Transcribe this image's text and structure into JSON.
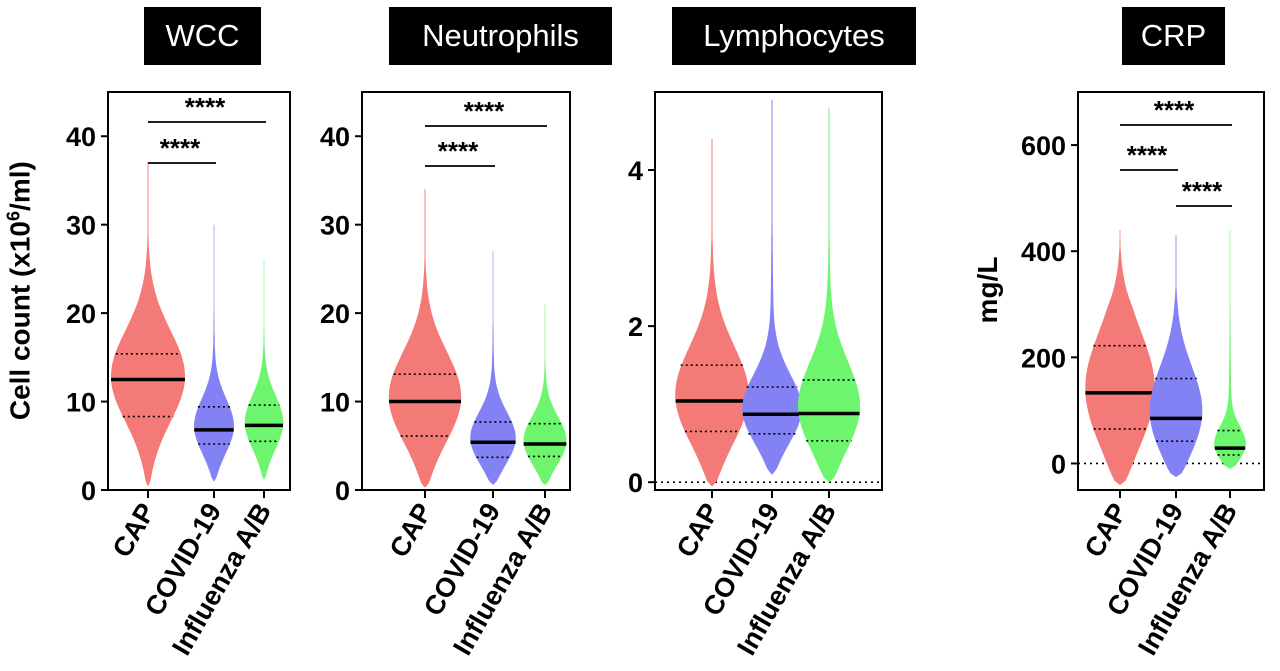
{
  "chart_data": [
    {
      "type": "violin",
      "title": "WCC",
      "ylabel": "Cell count (x10",
      "ylabel_sup": "6",
      "ylabel_suffix": "/ml)",
      "ylim": [
        0,
        45
      ],
      "yticks": [
        0,
        10,
        20,
        30,
        40
      ],
      "categories": [
        "CAP",
        "COVID-19",
        "Influenza A/B"
      ],
      "series": [
        {
          "category": "CAP",
          "color": "#f47a78",
          "min": 0.5,
          "q1": 8.3,
          "median": 12.5,
          "q3": 15.4,
          "max": 37
        },
        {
          "category": "COVID-19",
          "color": "#8282f5",
          "min": 1,
          "q1": 5.2,
          "median": 6.8,
          "q3": 9.4,
          "max": 30
        },
        {
          "category": "Influenza A/B",
          "color": "#6ef56e",
          "min": 1.2,
          "q1": 5.5,
          "median": 7.3,
          "q3": 9.6,
          "max": 26
        }
      ],
      "significance": [
        {
          "from": "CAP",
          "to": "COVID-19",
          "label": "****"
        },
        {
          "from": "CAP",
          "to": "Influenza A/B",
          "label": "****"
        }
      ]
    },
    {
      "type": "violin",
      "title": "Neutrophils",
      "ylim": [
        0,
        45
      ],
      "yticks": [
        0,
        10,
        20,
        30,
        40
      ],
      "categories": [
        "CAP",
        "COVID-19",
        "Influenza A/B"
      ],
      "series": [
        {
          "category": "CAP",
          "color": "#f47a78",
          "min": 0.3,
          "q1": 6.1,
          "median": 10,
          "q3": 13.1,
          "max": 34
        },
        {
          "category": "COVID-19",
          "color": "#8282f5",
          "min": 0.6,
          "q1": 3.7,
          "median": 5.4,
          "q3": 7.7,
          "max": 27
        },
        {
          "category": "Influenza A/B",
          "color": "#6ef56e",
          "min": 0.6,
          "q1": 3.8,
          "median": 5.2,
          "q3": 7.5,
          "max": 21
        }
      ],
      "significance": [
        {
          "from": "CAP",
          "to": "COVID-19",
          "label": "****"
        },
        {
          "from": "CAP",
          "to": "Influenza A/B",
          "label": "****"
        }
      ]
    },
    {
      "type": "violin",
      "title": "Lymphocytes",
      "ylim": [
        -0.1,
        5
      ],
      "yticks": [
        0,
        2,
        4
      ],
      "zero_line": true,
      "categories": [
        "CAP",
        "COVID-19",
        "Influenza A/B"
      ],
      "series": [
        {
          "category": "CAP",
          "color": "#f47a78",
          "min": -0.05,
          "q1": 0.65,
          "median": 1.04,
          "q3": 1.5,
          "max": 4.4
        },
        {
          "category": "COVID-19",
          "color": "#8282f5",
          "min": 0.1,
          "q1": 0.62,
          "median": 0.87,
          "q3": 1.22,
          "max": 4.9
        },
        {
          "category": "Influenza A/B",
          "color": "#6ef56e",
          "min": 0,
          "q1": 0.53,
          "median": 0.88,
          "q3": 1.31,
          "max": 4.8
        }
      ],
      "significance": []
    },
    {
      "type": "violin",
      "title": "CRP",
      "ylabel": "mg/L",
      "ylim": [
        -50,
        700
      ],
      "yticks": [
        0,
        200,
        400,
        600
      ],
      "zero_line": true,
      "categories": [
        "CAP",
        "COVID-19",
        "Influenza A/B"
      ],
      "series": [
        {
          "category": "CAP",
          "color": "#f47a78",
          "min": -40,
          "q1": 65,
          "median": 133,
          "q3": 222,
          "max": 440
        },
        {
          "category": "COVID-19",
          "color": "#8282f5",
          "min": -25,
          "q1": 42,
          "median": 85,
          "q3": 160,
          "max": 430
        },
        {
          "category": "Influenza A/B",
          "color": "#6ef56e",
          "min": -10,
          "q1": 16,
          "median": 29,
          "q3": 62,
          "max": 440
        }
      ],
      "significance": [
        {
          "from": "CAP",
          "to": "COVID-19",
          "label": "****"
        },
        {
          "from": "CAP",
          "to": "Influenza A/B",
          "label": "****"
        },
        {
          "from": "COVID-19",
          "to": "Influenza A/B",
          "label": "****"
        }
      ]
    }
  ]
}
